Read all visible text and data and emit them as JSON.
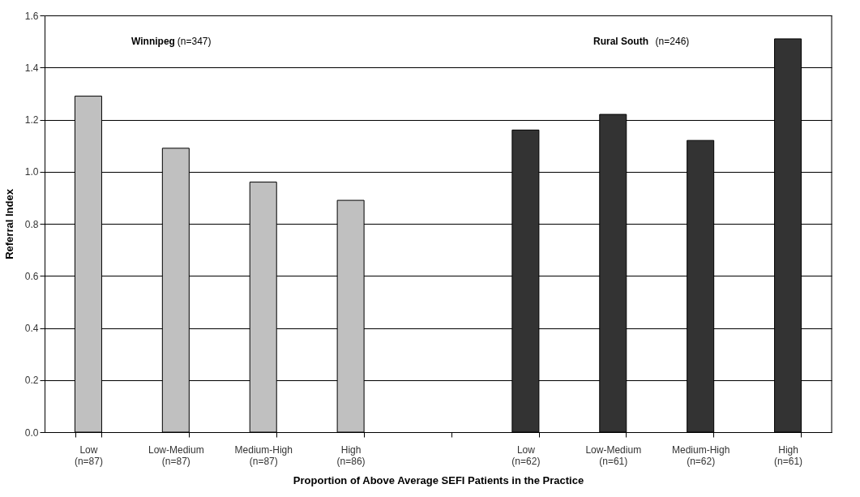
{
  "chart_data": {
    "type": "bar",
    "xlabel": "Proportion of Above Average SEFI Patients in the Practice",
    "ylabel": "Referral Index",
    "categories": [
      "Low\n(n=87)",
      "Low-Medium\n(n=87)",
      "Medium-High\n(n=87)",
      "High\n(n=86)",
      null,
      "Low\n(n=62)",
      "Low-Medium\n(n=61)",
      "Medium-High\n(n=62)",
      "High\n(n=61)"
    ],
    "series": [
      {
        "color": "#c0c0c0",
        "values": [
          1.29,
          1.09,
          0.96,
          0.89,
          null,
          null,
          null,
          null,
          null
        ]
      },
      {
        "color": "#333333",
        "values": [
          null,
          null,
          null,
          null,
          null,
          1.16,
          1.22,
          1.12,
          1.51
        ]
      }
    ],
    "ylim": [
      0,
      1.6
    ],
    "yticks": [
      {
        "value": 0,
        "label": "0.0"
      },
      {
        "value": 0.2,
        "label": "0.2"
      },
      {
        "value": 0.4,
        "label": "0.4"
      },
      {
        "value": 0.6,
        "label": "0.6"
      },
      {
        "value": 0.8,
        "label": "0.8"
      },
      {
        "value": 1.0,
        "label": "1.0"
      },
      {
        "value": 1.2,
        "label": "1.2"
      },
      {
        "value": 1.4,
        "label": "1.4"
      },
      {
        "value": 1.6,
        "label": "1.6"
      }
    ],
    "grid": "y",
    "legend": false,
    "annotations": [
      "Winnipeg",
      "(n=347)",
      "Rural South",
      "(n=246)"
    ]
  }
}
